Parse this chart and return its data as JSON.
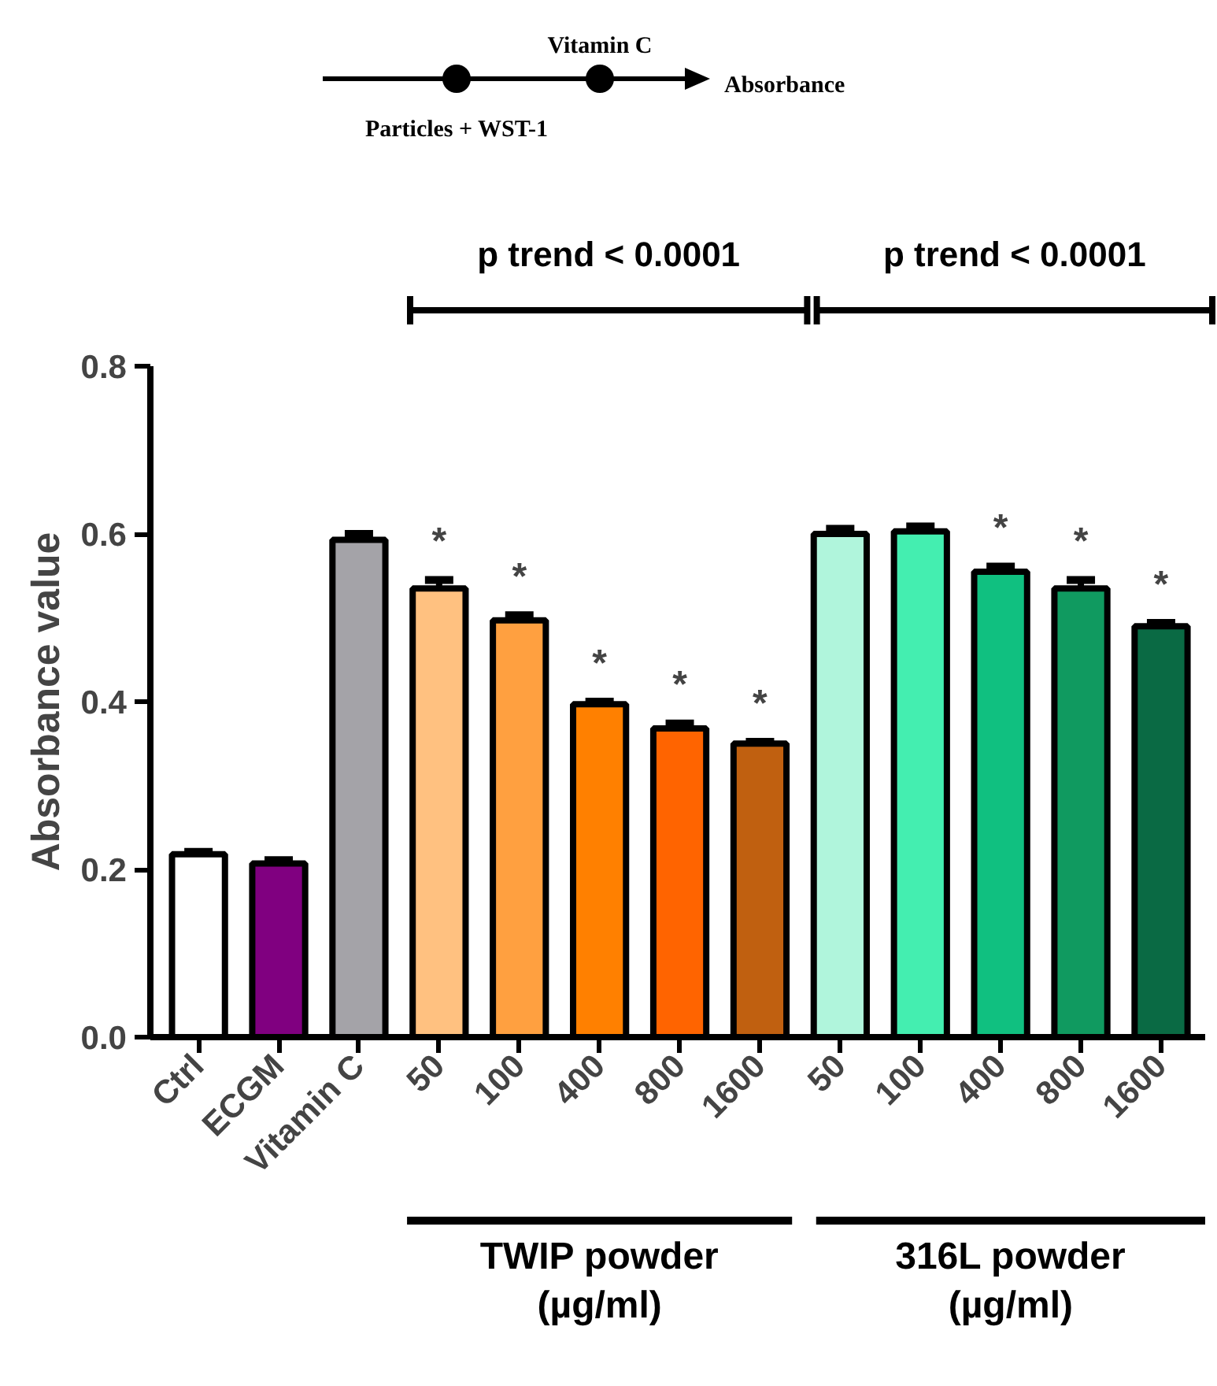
{
  "chart_data": {
    "type": "bar",
    "ylabel": "Absorbance value",
    "categories": [
      "Ctrl",
      "ECGM",
      "Vitamin C",
      "50",
      "100",
      "400",
      "800",
      "1600",
      "50",
      "100",
      "400",
      "800",
      "1600"
    ],
    "values": [
      0.218,
      0.207,
      0.593,
      0.535,
      0.497,
      0.397,
      0.368,
      0.35,
      0.6,
      0.603,
      0.555,
      0.535,
      0.49
    ],
    "errors": [
      0.003,
      0.004,
      0.007,
      0.01,
      0.006,
      0.003,
      0.006,
      0.002,
      0.006,
      0.006,
      0.006,
      0.01,
      0.004
    ],
    "colors": [
      "#ffffff",
      "#800080",
      "#a4a3a8",
      "#ffc180",
      "#ffa040",
      "#ff8000",
      "#ff6400",
      "#c06010",
      "#b0f5dc",
      "#44eeb0",
      "#10c080",
      "#109a60",
      "#0a6a44"
    ],
    "value_labels": [
      null,
      null,
      null,
      "*",
      "*",
      "*",
      "*",
      "*",
      null,
      null,
      "*",
      "*",
      "*"
    ],
    "ylim": [
      0,
      0.8
    ],
    "yticks": [
      {
        "value": 0,
        "label": "0.0"
      },
      {
        "value": 0.2,
        "label": "0.2"
      },
      {
        "value": 0.4,
        "label": "0.4"
      },
      {
        "value": 0.6,
        "label": "0.6"
      },
      {
        "value": 0.8,
        "label": "0.8"
      }
    ],
    "annotations": [
      "Vitamin C",
      "Particles + WST-1",
      "Absorbance",
      "p trend < 0.0001",
      "p trend < 0.0001",
      "TWIP powder\n(µg/ml)",
      "316L powder\n(µg/ml)"
    ]
  }
}
